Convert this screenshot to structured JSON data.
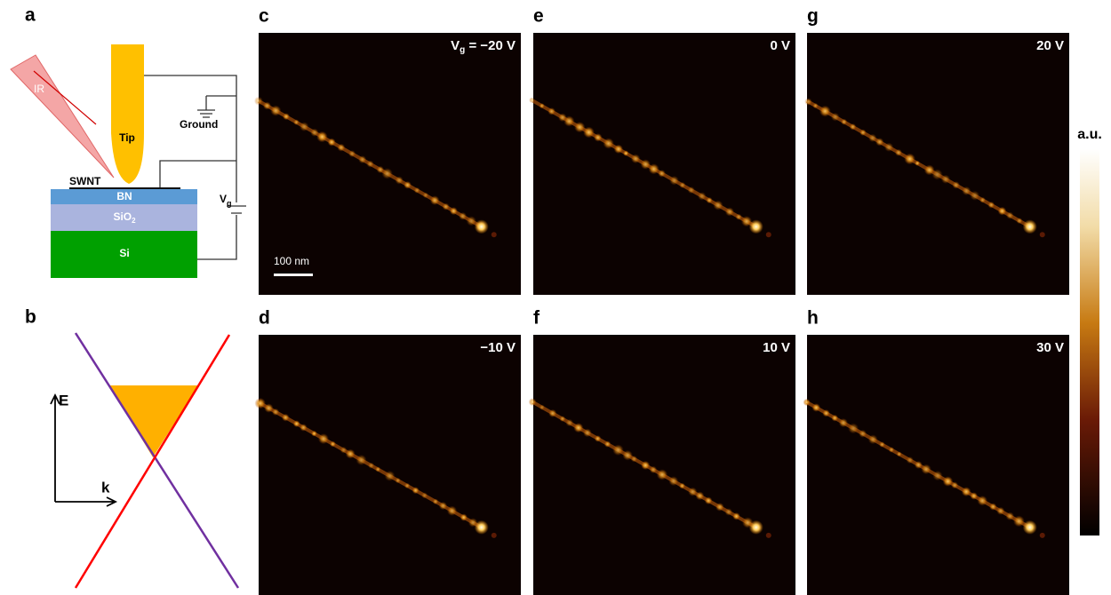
{
  "panels": {
    "a": {
      "label": "a",
      "ir": "IR",
      "tip": "Tip",
      "ground": "Ground",
      "swnt": "SWNT",
      "bn": "BN",
      "sio2": {
        "text": "SiO",
        "sub": "2"
      },
      "si": "Si",
      "gate": {
        "text": "V",
        "sub": "g"
      }
    },
    "b": {
      "label": "b",
      "energy_axis": "E",
      "momentum_axis": "k"
    },
    "images": [
      {
        "label": "c",
        "symbol": "V",
        "symbol_sub": "g",
        "voltage": " = −20 V",
        "scale_bar": "100 nm"
      },
      {
        "label": "d",
        "voltage": "−10 V"
      },
      {
        "label": "e",
        "voltage": "0 V"
      },
      {
        "label": "f",
        "voltage": "10 V"
      },
      {
        "label": "g",
        "voltage": "20 V"
      },
      {
        "label": "h",
        "voltage": "30 V"
      }
    ],
    "colorbar": {
      "label": "a.u."
    }
  }
}
